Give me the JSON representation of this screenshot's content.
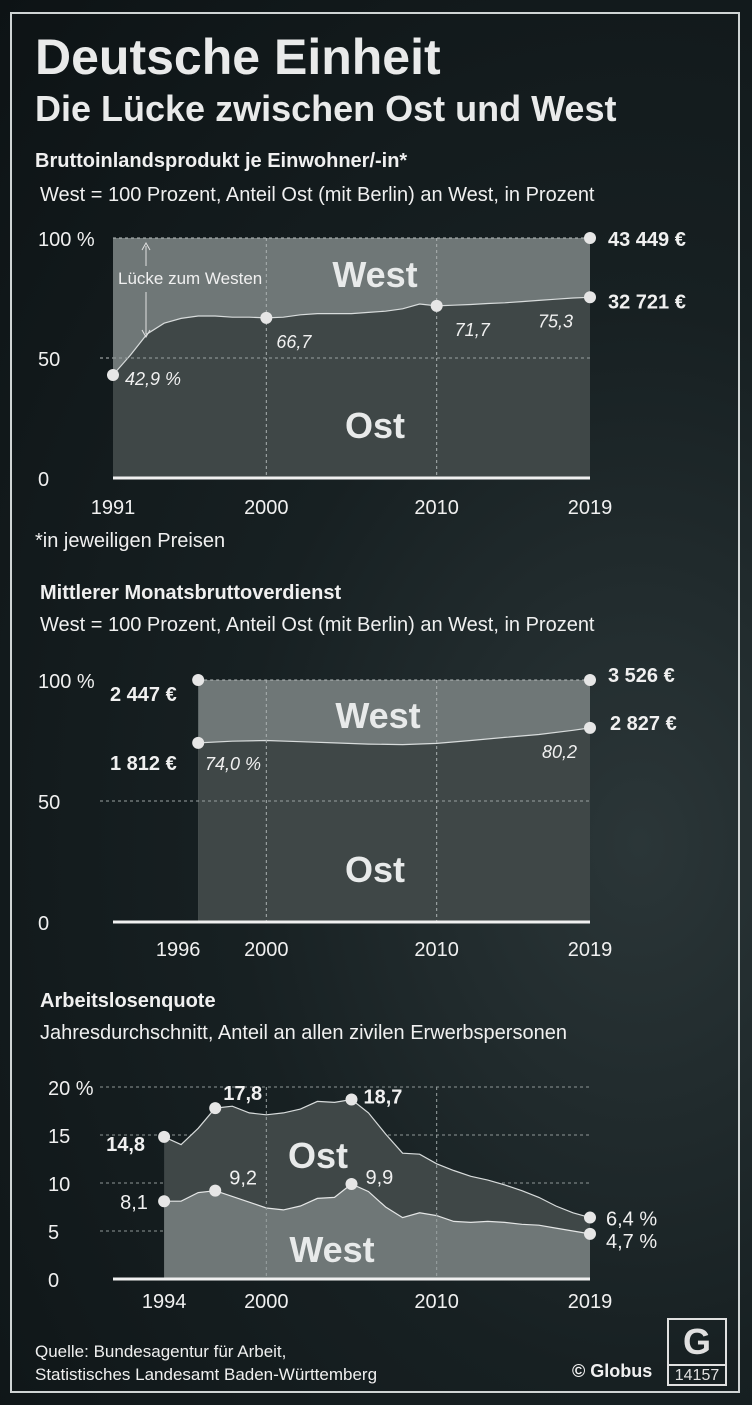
{
  "header": {
    "title": "Deutsche Einheit",
    "subtitle": "Die Lücke zwischen Ost und West"
  },
  "footer": {
    "source_line1": "Quelle: Bundesagentur für Arbeit,",
    "source_line2": "Statistisches Landesamt Baden-Württemberg",
    "copyright": "© Globus",
    "graphic_number": "14157",
    "logo_letter": "G"
  },
  "colors": {
    "background": "#0d1315",
    "area_light": "#6f7777",
    "area_dark": "#3f4747",
    "text": "#f0f0f0",
    "marker": "#e6e6e6"
  },
  "chart_data": [
    {
      "type": "area",
      "title": "Bruttoinlandsprodukt je Einwohner/-in*",
      "subtitle": "West = 100 Prozent, Anteil Ost (mit Berlin) an West, in Prozent",
      "footnote": "*in jeweiligen Preisen",
      "y_ticks": [
        "100 %",
        "50",
        "0"
      ],
      "ylim": [
        0,
        100
      ],
      "x_ticks": [
        1991,
        2000,
        2010,
        2019
      ],
      "xlim": [
        1991,
        2019
      ],
      "series": [
        {
          "name": "West",
          "x": [
            1991,
            2019
          ],
          "values": [
            100,
            100
          ]
        },
        {
          "name": "Ost",
          "x": [
            1991,
            1992,
            1993,
            1994,
            1995,
            1996,
            1997,
            1998,
            1999,
            2000,
            2001,
            2002,
            2003,
            2004,
            2005,
            2006,
            2007,
            2008,
            2009,
            2010,
            2011,
            2012,
            2013,
            2014,
            2015,
            2016,
            2017,
            2018,
            2019
          ],
          "values": [
            42.9,
            51,
            60,
            64.5,
            66.5,
            67.5,
            67.5,
            67,
            67,
            66.7,
            67,
            68,
            68.5,
            68.5,
            68.5,
            69,
            69.5,
            70.5,
            72.5,
            71.7,
            72,
            72.3,
            72.7,
            73,
            73.5,
            74,
            74.5,
            75,
            75.3
          ]
        }
      ],
      "point_labels": [
        {
          "x": 1991,
          "value": 42.9,
          "label": "42,9 %"
        },
        {
          "x": 2000,
          "value": 66.7,
          "label": "66,7"
        },
        {
          "x": 2010,
          "value": 71.7,
          "label": "71,7"
        },
        {
          "x": 2019,
          "value": 75.3,
          "label": "75,3"
        }
      ],
      "end_values": {
        "west": "43 449 €",
        "ost": "32 721 €"
      },
      "area_labels": {
        "west": "West",
        "ost": "Ost"
      },
      "annotation": "Lücke zum Westen"
    },
    {
      "type": "area",
      "title": "Mittlerer Monatsbruttoverdienst",
      "subtitle": "West = 100 Prozent, Anteil Ost (mit Berlin) an West, in Prozent",
      "y_ticks": [
        "100 %",
        "50",
        "0"
      ],
      "ylim": [
        0,
        100
      ],
      "x_ticks": [
        1996,
        2000,
        2010,
        2019
      ],
      "xlim": [
        1991,
        2019
      ],
      "series": [
        {
          "name": "West",
          "x": [
            1996,
            2019
          ],
          "values": [
            100,
            100
          ]
        },
        {
          "name": "Ost",
          "x": [
            1996,
            1998,
            2000,
            2002,
            2004,
            2006,
            2008,
            2010,
            2012,
            2014,
            2016,
            2018,
            2019
          ],
          "values": [
            74.0,
            74.7,
            75,
            74.5,
            74,
            73.5,
            73.3,
            73.8,
            75,
            76.3,
            77.5,
            79.2,
            80.2
          ]
        }
      ],
      "point_labels": [
        {
          "x": 1996,
          "value": 74.0,
          "label": "74,0 %"
        },
        {
          "x": 2019,
          "value": 80.2,
          "label": "80,2"
        }
      ],
      "start_values": {
        "west": "2 447 €",
        "ost": "1 812 €"
      },
      "end_values": {
        "west": "3 526 €",
        "ost": "2 827 €"
      },
      "area_labels": {
        "west": "West",
        "ost": "Ost"
      }
    },
    {
      "type": "area",
      "title": "Arbeitslosenquote",
      "subtitle": "Jahresdurchschnitt, Anteil an allen zivilen Erwerbspersonen",
      "y_ticks": [
        "20 %",
        "15",
        "10",
        "5",
        "0"
      ],
      "ylim": [
        0,
        20
      ],
      "x_ticks": [
        1994,
        2000,
        2010,
        2019
      ],
      "xlim": [
        1991,
        2019
      ],
      "series": [
        {
          "name": "Ost",
          "x": [
            1994,
            1995,
            1996,
            1997,
            1998,
            1999,
            2000,
            2001,
            2002,
            2003,
            2004,
            2005,
            2006,
            2007,
            2008,
            2009,
            2010,
            2011,
            2012,
            2013,
            2014,
            2015,
            2016,
            2017,
            2018,
            2019
          ],
          "values": [
            14.8,
            14.0,
            15.7,
            17.8,
            18.0,
            17.3,
            17.1,
            17.3,
            17.7,
            18.5,
            18.4,
            18.7,
            17.3,
            15.1,
            13.1,
            13.0,
            12.0,
            11.3,
            10.7,
            10.3,
            9.8,
            9.2,
            8.5,
            7.6,
            6.9,
            6.4
          ]
        },
        {
          "name": "West",
          "x": [
            1994,
            1995,
            1996,
            1997,
            1998,
            1999,
            2000,
            2001,
            2002,
            2003,
            2004,
            2005,
            2006,
            2007,
            2008,
            2009,
            2010,
            2011,
            2012,
            2013,
            2014,
            2015,
            2016,
            2017,
            2018,
            2019
          ],
          "values": [
            8.1,
            8.1,
            9.0,
            9.2,
            8.6,
            8.0,
            7.4,
            7.2,
            7.6,
            8.4,
            8.5,
            9.9,
            9.1,
            7.5,
            6.4,
            6.9,
            6.6,
            6.0,
            5.9,
            6.0,
            5.9,
            5.7,
            5.6,
            5.3,
            5.0,
            4.7
          ]
        }
      ],
      "point_labels": [
        {
          "series": "Ost",
          "x": 1994,
          "value": 14.8,
          "label": "14,8"
        },
        {
          "series": "Ost",
          "x": 1997,
          "value": 17.8,
          "label": "17,8"
        },
        {
          "series": "Ost",
          "x": 2005,
          "value": 18.7,
          "label": "18,7"
        },
        {
          "series": "Ost",
          "x": 2019,
          "value": 6.4,
          "label": "6,4 %"
        },
        {
          "series": "West",
          "x": 1994,
          "value": 8.1,
          "label": "8,1"
        },
        {
          "series": "West",
          "x": 1997,
          "value": 9.2,
          "label": "9,2"
        },
        {
          "series": "West",
          "x": 2005,
          "value": 9.9,
          "label": "9,9"
        },
        {
          "series": "West",
          "x": 2019,
          "value": 4.7,
          "label": "4,7 %"
        }
      ],
      "area_labels": {
        "ost": "Ost",
        "west": "West"
      }
    }
  ]
}
